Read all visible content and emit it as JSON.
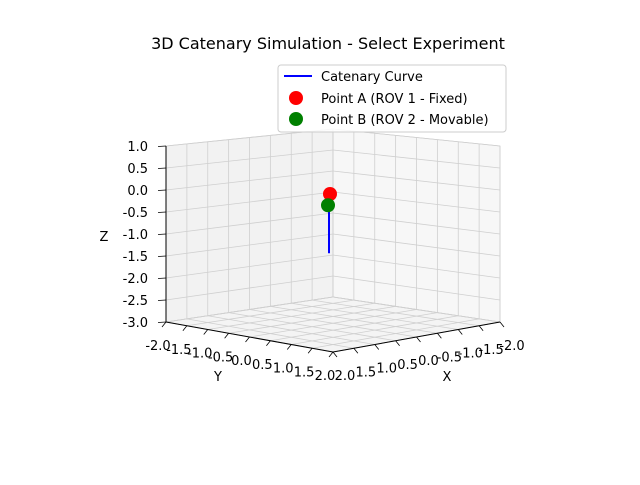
{
  "chart_data": {
    "type": "line3d",
    "title": "3D Catenary Simulation - Select Experiment",
    "xlabel": "X",
    "ylabel": "Y",
    "zlabel": "Z",
    "xlim": [
      -2.0,
      2.0
    ],
    "ylim": [
      -2.0,
      2.0
    ],
    "zlim": [
      -3.0,
      1.0
    ],
    "x_ticks": [
      "-2.0",
      "-1.5",
      "-1.0",
      "-0.5",
      "0.0",
      "0.5",
      "1.0",
      "1.5",
      "2.0"
    ],
    "y_ticks": [
      "-2.0",
      "-1.5",
      "-1.0",
      "-0.5",
      "0.0",
      "0.5",
      "1.0",
      "1.5",
      "2.0"
    ],
    "z_ticks": [
      "1.0",
      "0.5",
      "0.0",
      "-0.5",
      "-1.0",
      "-1.5",
      "-2.0",
      "-2.5",
      "-3.0"
    ],
    "grid": true,
    "legend_position": "top-right",
    "legend": [
      {
        "label": "Catenary Curve",
        "marker": "line",
        "color": "#0000ff"
      },
      {
        "label": "Point A (ROV 1 - Fixed)",
        "marker": "circle",
        "color": "#ff0000"
      },
      {
        "label": "Point B (ROV 2 - Movable)",
        "marker": "circle",
        "color": "#008000"
      }
    ],
    "series": [
      {
        "name": "Catenary Curve",
        "color": "#0000ff",
        "x": [
          0.0,
          0.0,
          0.0,
          0.0,
          0.0,
          0.0
        ],
        "y": [
          0.0,
          0.0,
          0.0,
          0.0,
          0.0,
          0.0
        ],
        "z": [
          0.0,
          -0.6,
          -1.2,
          -1.6,
          -1.2,
          -0.25
        ]
      },
      {
        "name": "Point A (ROV 1 - Fixed)",
        "color": "#ff0000",
        "x": [
          0.0
        ],
        "y": [
          0.0
        ],
        "z": [
          0.0
        ]
      },
      {
        "name": "Point B (ROV 2 - Movable)",
        "color": "#008000",
        "x": [
          0.0
        ],
        "y": [
          0.0
        ],
        "z": [
          -0.25
        ]
      }
    ]
  }
}
